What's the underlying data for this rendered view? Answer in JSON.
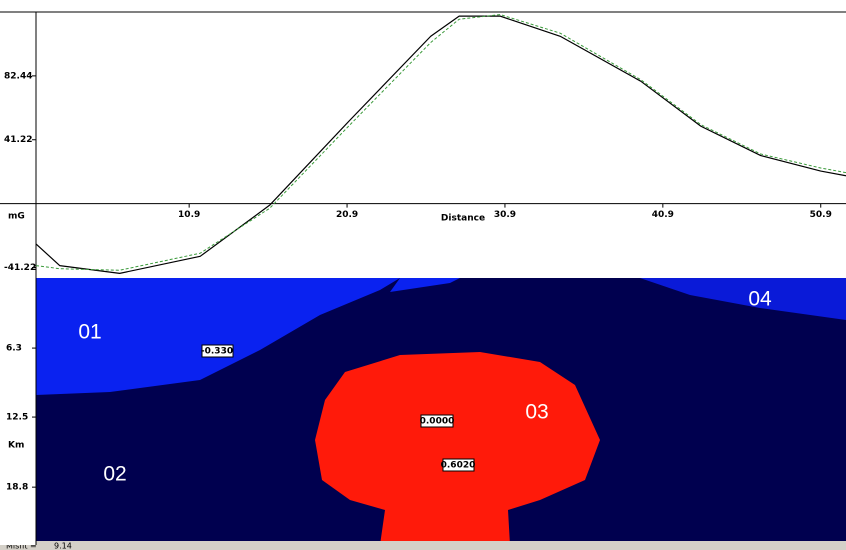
{
  "chart_data": {
    "type": "line",
    "x_label": "Distance",
    "y_label": "mG",
    "x": [
      1.2,
      2.7,
      6.5,
      11.6,
      16,
      21,
      26.2,
      28,
      30.6,
      34.4,
      39.5,
      43.3,
      47.1,
      50.9,
      52.5
    ],
    "series": [
      {
        "color": "#000000",
        "dash": false,
        "values": [
          -26,
          -40,
          -45,
          -34,
          -1,
          53,
          108,
          121,
          121,
          108,
          79,
          50,
          31,
          21,
          18
        ]
      },
      {
        "color": "#3a9a3a",
        "dash": true,
        "values": [
          -40,
          -42,
          -43,
          -32,
          -3,
          50,
          104,
          119,
          122,
          110,
          80,
          51,
          32,
          23,
          20
        ]
      }
    ],
    "xlim": [
      1.2,
      52.5
    ],
    "xticks": [
      10.9,
      20.9,
      30.9,
      40.9,
      50.9
    ],
    "ylim": [
      -48,
      123.66
    ],
    "yticks": [
      -41.22,
      41.22,
      82.44
    ]
  },
  "model": {
    "depth_label": "Km",
    "depth_lim": [
      0,
      24
    ],
    "depth_ticks": [
      6.3,
      12.5,
      18.8
    ],
    "bodies": [
      {
        "id": "01",
        "density": "-0.330"
      },
      {
        "id": "02",
        "density": "0.6020"
      },
      {
        "id": "03",
        "density": "0.0000"
      },
      {
        "id": "04"
      }
    ]
  },
  "status": {
    "misfit_label": "Misfit =",
    "misfit": 9.14
  }
}
